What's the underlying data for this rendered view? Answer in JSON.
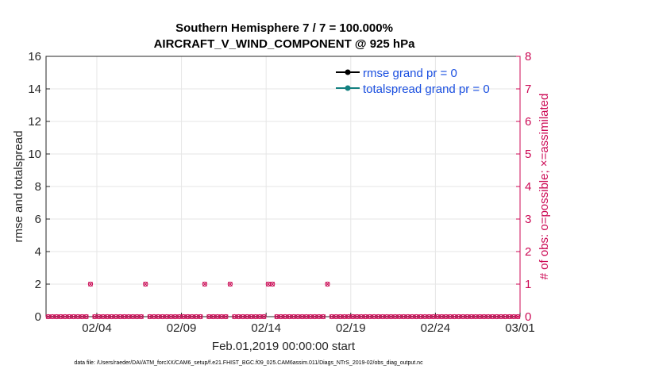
{
  "chart_data": {
    "type": "line",
    "title_line1": "Southern Hemisphere 7 / 7 = 100.000%",
    "title_line2": "AIRCRAFT_V_WIND_COMPONENT @ 925 hPa",
    "ylabel_left": "rmse and totalspread",
    "ylabel_right": "# of obs: o=possible; ×=assimilated",
    "xlabel": "Feb.01,2019 00:00:00 start",
    "footer": "data file: /Users/raeder/DAI/ATM_forcXX/CAM6_setup/f.e21.FHIST_BGC.f09_025.CAM6assim.011/Diags_NTrS_2019-02/obs_diag_output.nc",
    "xlim": [
      0,
      28
    ],
    "ylim_left": [
      0,
      16
    ],
    "ylim_right": [
      0,
      8
    ],
    "x_ticks": [
      {
        "value": 3,
        "label": "02/04"
      },
      {
        "value": 8,
        "label": "02/09"
      },
      {
        "value": 13,
        "label": "02/14"
      },
      {
        "value": 18,
        "label": "02/19"
      },
      {
        "value": 23,
        "label": "02/24"
      },
      {
        "value": 28,
        "label": "03/01"
      }
    ],
    "y_ticks_left": [
      "0",
      "2",
      "4",
      "6",
      "8",
      "10",
      "12",
      "14",
      "16"
    ],
    "y_ticks_right": [
      "0",
      "1",
      "2",
      "3",
      "4",
      "5",
      "6",
      "7",
      "8"
    ],
    "legend_position": "top-right",
    "series": [
      {
        "name": "rmse grand pr = 0",
        "color": "#000000",
        "marker": "filled-circle",
        "values": []
      },
      {
        "name": "totalspread grand pr = 0",
        "color": "#138080",
        "marker": "filled-circle",
        "values": []
      }
    ],
    "obs_count": {
      "color": "#cc0a55",
      "x_start": 0.125,
      "x_step": 0.25,
      "n": 112,
      "nonzero": [
        {
          "x": 2.625,
          "value": 1
        },
        {
          "x": 5.875,
          "value": 1
        },
        {
          "x": 9.375,
          "value": 1
        },
        {
          "x": 10.875,
          "value": 1
        },
        {
          "x": 13.125,
          "value": 1
        },
        {
          "x": 13.375,
          "value": 1
        },
        {
          "x": 16.625,
          "value": 1
        }
      ]
    }
  }
}
